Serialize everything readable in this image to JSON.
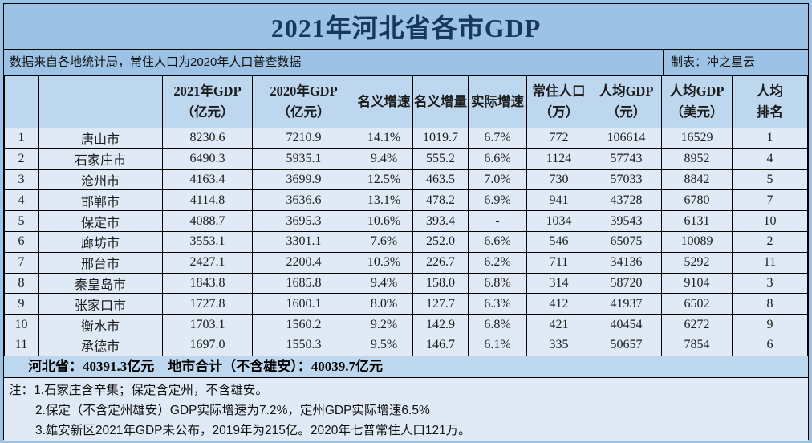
{
  "title": "2021年河北省各市GDP",
  "subtitle": {
    "left": "数据来自各地统计局，常住人口为2020年人口普查数据",
    "right": "制表：冲之星云"
  },
  "table": {
    "columns": [
      {
        "id": "rank",
        "lines": [
          ""
        ]
      },
      {
        "id": "city",
        "lines": [
          ""
        ]
      },
      {
        "id": "gdp-2021",
        "lines": [
          "2021年GDP",
          "（亿元）"
        ]
      },
      {
        "id": "gdp-2020",
        "lines": [
          "2020年GDP",
          "（亿元）"
        ]
      },
      {
        "id": "nominal-growth",
        "lines": [
          "名义增速"
        ]
      },
      {
        "id": "nominal-increment",
        "lines": [
          "名义增量"
        ]
      },
      {
        "id": "real-growth",
        "lines": [
          "实际增速"
        ]
      },
      {
        "id": "population",
        "lines": [
          "常住人口",
          "（万）"
        ]
      },
      {
        "id": "gdp-per-capita-cny",
        "lines": [
          "人均GDP",
          "（元）"
        ]
      },
      {
        "id": "gdp-per-capita-usd",
        "lines": [
          "人均GDP",
          "（美元）"
        ]
      },
      {
        "id": "per-capita-rank",
        "lines": [
          "人均",
          "排名"
        ]
      }
    ],
    "rows": [
      [
        "1",
        "唐山市",
        "8230.6",
        "7210.9",
        "14.1%",
        "1019.7",
        "6.7%",
        "772",
        "106614",
        "16529",
        "1"
      ],
      [
        "2",
        "石家庄市",
        "6490.3",
        "5935.1",
        "9.4%",
        "555.2",
        "6.6%",
        "1124",
        "57743",
        "8952",
        "4"
      ],
      [
        "3",
        "沧州市",
        "4163.4",
        "3699.9",
        "12.5%",
        "463.5",
        "7.0%",
        "730",
        "57033",
        "8842",
        "5"
      ],
      [
        "4",
        "邯郸市",
        "4114.8",
        "3636.6",
        "13.1%",
        "478.2",
        "6.9%",
        "941",
        "43728",
        "6780",
        "7"
      ],
      [
        "5",
        "保定市",
        "4088.7",
        "3695.3",
        "10.6%",
        "393.4",
        "-",
        "1034",
        "39543",
        "6131",
        "10"
      ],
      [
        "6",
        "廊坊市",
        "3553.1",
        "3301.1",
        "7.6%",
        "252.0",
        "6.6%",
        "546",
        "65075",
        "10089",
        "2"
      ],
      [
        "7",
        "邢台市",
        "2427.1",
        "2200.4",
        "10.3%",
        "226.7",
        "6.2%",
        "711",
        "34136",
        "5292",
        "11"
      ],
      [
        "8",
        "秦皇岛市",
        "1843.8",
        "1685.8",
        "9.4%",
        "158.0",
        "6.8%",
        "314",
        "58720",
        "9104",
        "3"
      ],
      [
        "9",
        "张家口市",
        "1727.8",
        "1600.1",
        "8.0%",
        "127.7",
        "6.3%",
        "412",
        "41937",
        "6502",
        "8"
      ],
      [
        "10",
        "衡水市",
        "1703.1",
        "1560.2",
        "9.2%",
        "142.9",
        "6.8%",
        "421",
        "40454",
        "6272",
        "9"
      ],
      [
        "11",
        "承德市",
        "1697.0",
        "1550.3",
        "9.5%",
        "146.7",
        "6.1%",
        "335",
        "50657",
        "7854",
        "6"
      ]
    ]
  },
  "summary": {
    "text": "河北省：40391.3亿元　地市合计（不含雄安）：40039.7亿元"
  },
  "notes": [
    "注：1.石家庄含辛集；保定含定州，不含雄安。",
    "2.保定（不含定州雄安）GDP实际增速为7.2%，定州GDP实际增速6.5%",
    "3.雄安新区2021年GDP未公布，2019年为215亿。2020年七普常住人口121万。"
  ],
  "colors": {
    "frame_background": "#9cc3e6",
    "header_band_background": "#bdd7ee",
    "row_background": "#dfeaf6",
    "title_text": "#17375d",
    "border": "#000000"
  },
  "chart_data": {
    "type": "table",
    "title": "2021年河北省各市GDP",
    "columns": [
      "",
      "",
      "2021年GDP（亿元）",
      "2020年GDP（亿元）",
      "名义增速",
      "名义增量",
      "实际增速",
      "常住人口（万）",
      "人均GDP（元）",
      "人均GDP（美元）",
      "人均排名"
    ],
    "rows": [
      [
        "1",
        "唐山市",
        8230.6,
        7210.9,
        "14.1%",
        1019.7,
        "6.7%",
        772,
        106614,
        16529,
        1
      ],
      [
        "2",
        "石家庄市",
        6490.3,
        5935.1,
        "9.4%",
        555.2,
        "6.6%",
        1124,
        57743,
        8952,
        4
      ],
      [
        "3",
        "沧州市",
        4163.4,
        3699.9,
        "12.5%",
        463.5,
        "7.0%",
        730,
        57033,
        8842,
        5
      ],
      [
        "4",
        "邯郸市",
        4114.8,
        3636.6,
        "13.1%",
        478.2,
        "6.9%",
        941,
        43728,
        6780,
        7
      ],
      [
        "5",
        "保定市",
        4088.7,
        3695.3,
        "10.6%",
        393.4,
        "-",
        1034,
        39543,
        6131,
        10
      ],
      [
        "6",
        "廊坊市",
        3553.1,
        3301.1,
        "7.6%",
        252.0,
        "6.6%",
        546,
        65075,
        10089,
        2
      ],
      [
        "7",
        "邢台市",
        2427.1,
        2200.4,
        "10.3%",
        226.7,
        "6.2%",
        711,
        34136,
        5292,
        11
      ],
      [
        "8",
        "秦皇岛市",
        1843.8,
        1685.8,
        "9.4%",
        158.0,
        "6.8%",
        314,
        58720,
        9104,
        3
      ],
      [
        "9",
        "张家口市",
        1727.8,
        1600.1,
        "8.0%",
        127.7,
        "6.3%",
        412,
        41937,
        6502,
        8
      ],
      [
        "10",
        "衡水市",
        1703.1,
        1560.2,
        "9.2%",
        142.9,
        "6.8%",
        421,
        40454,
        6272,
        9
      ],
      [
        "11",
        "承德市",
        1697.0,
        1550.3,
        "9.5%",
        146.7,
        "6.1%",
        335,
        50657,
        7854,
        6
      ]
    ],
    "footer": "河北省：40391.3亿元　地市合计（不含雄安）：40039.7亿元",
    "notes": [
      "注：1.石家庄含辛集；保定含定州，不含雄安。",
      "2.保定（不含定州雄安）GDP实际增速为7.2%，定州GDP实际增速6.5%",
      "3.雄安新区2021年GDP未公布，2019年为215亿。2020年七普常住人口121万。"
    ]
  }
}
